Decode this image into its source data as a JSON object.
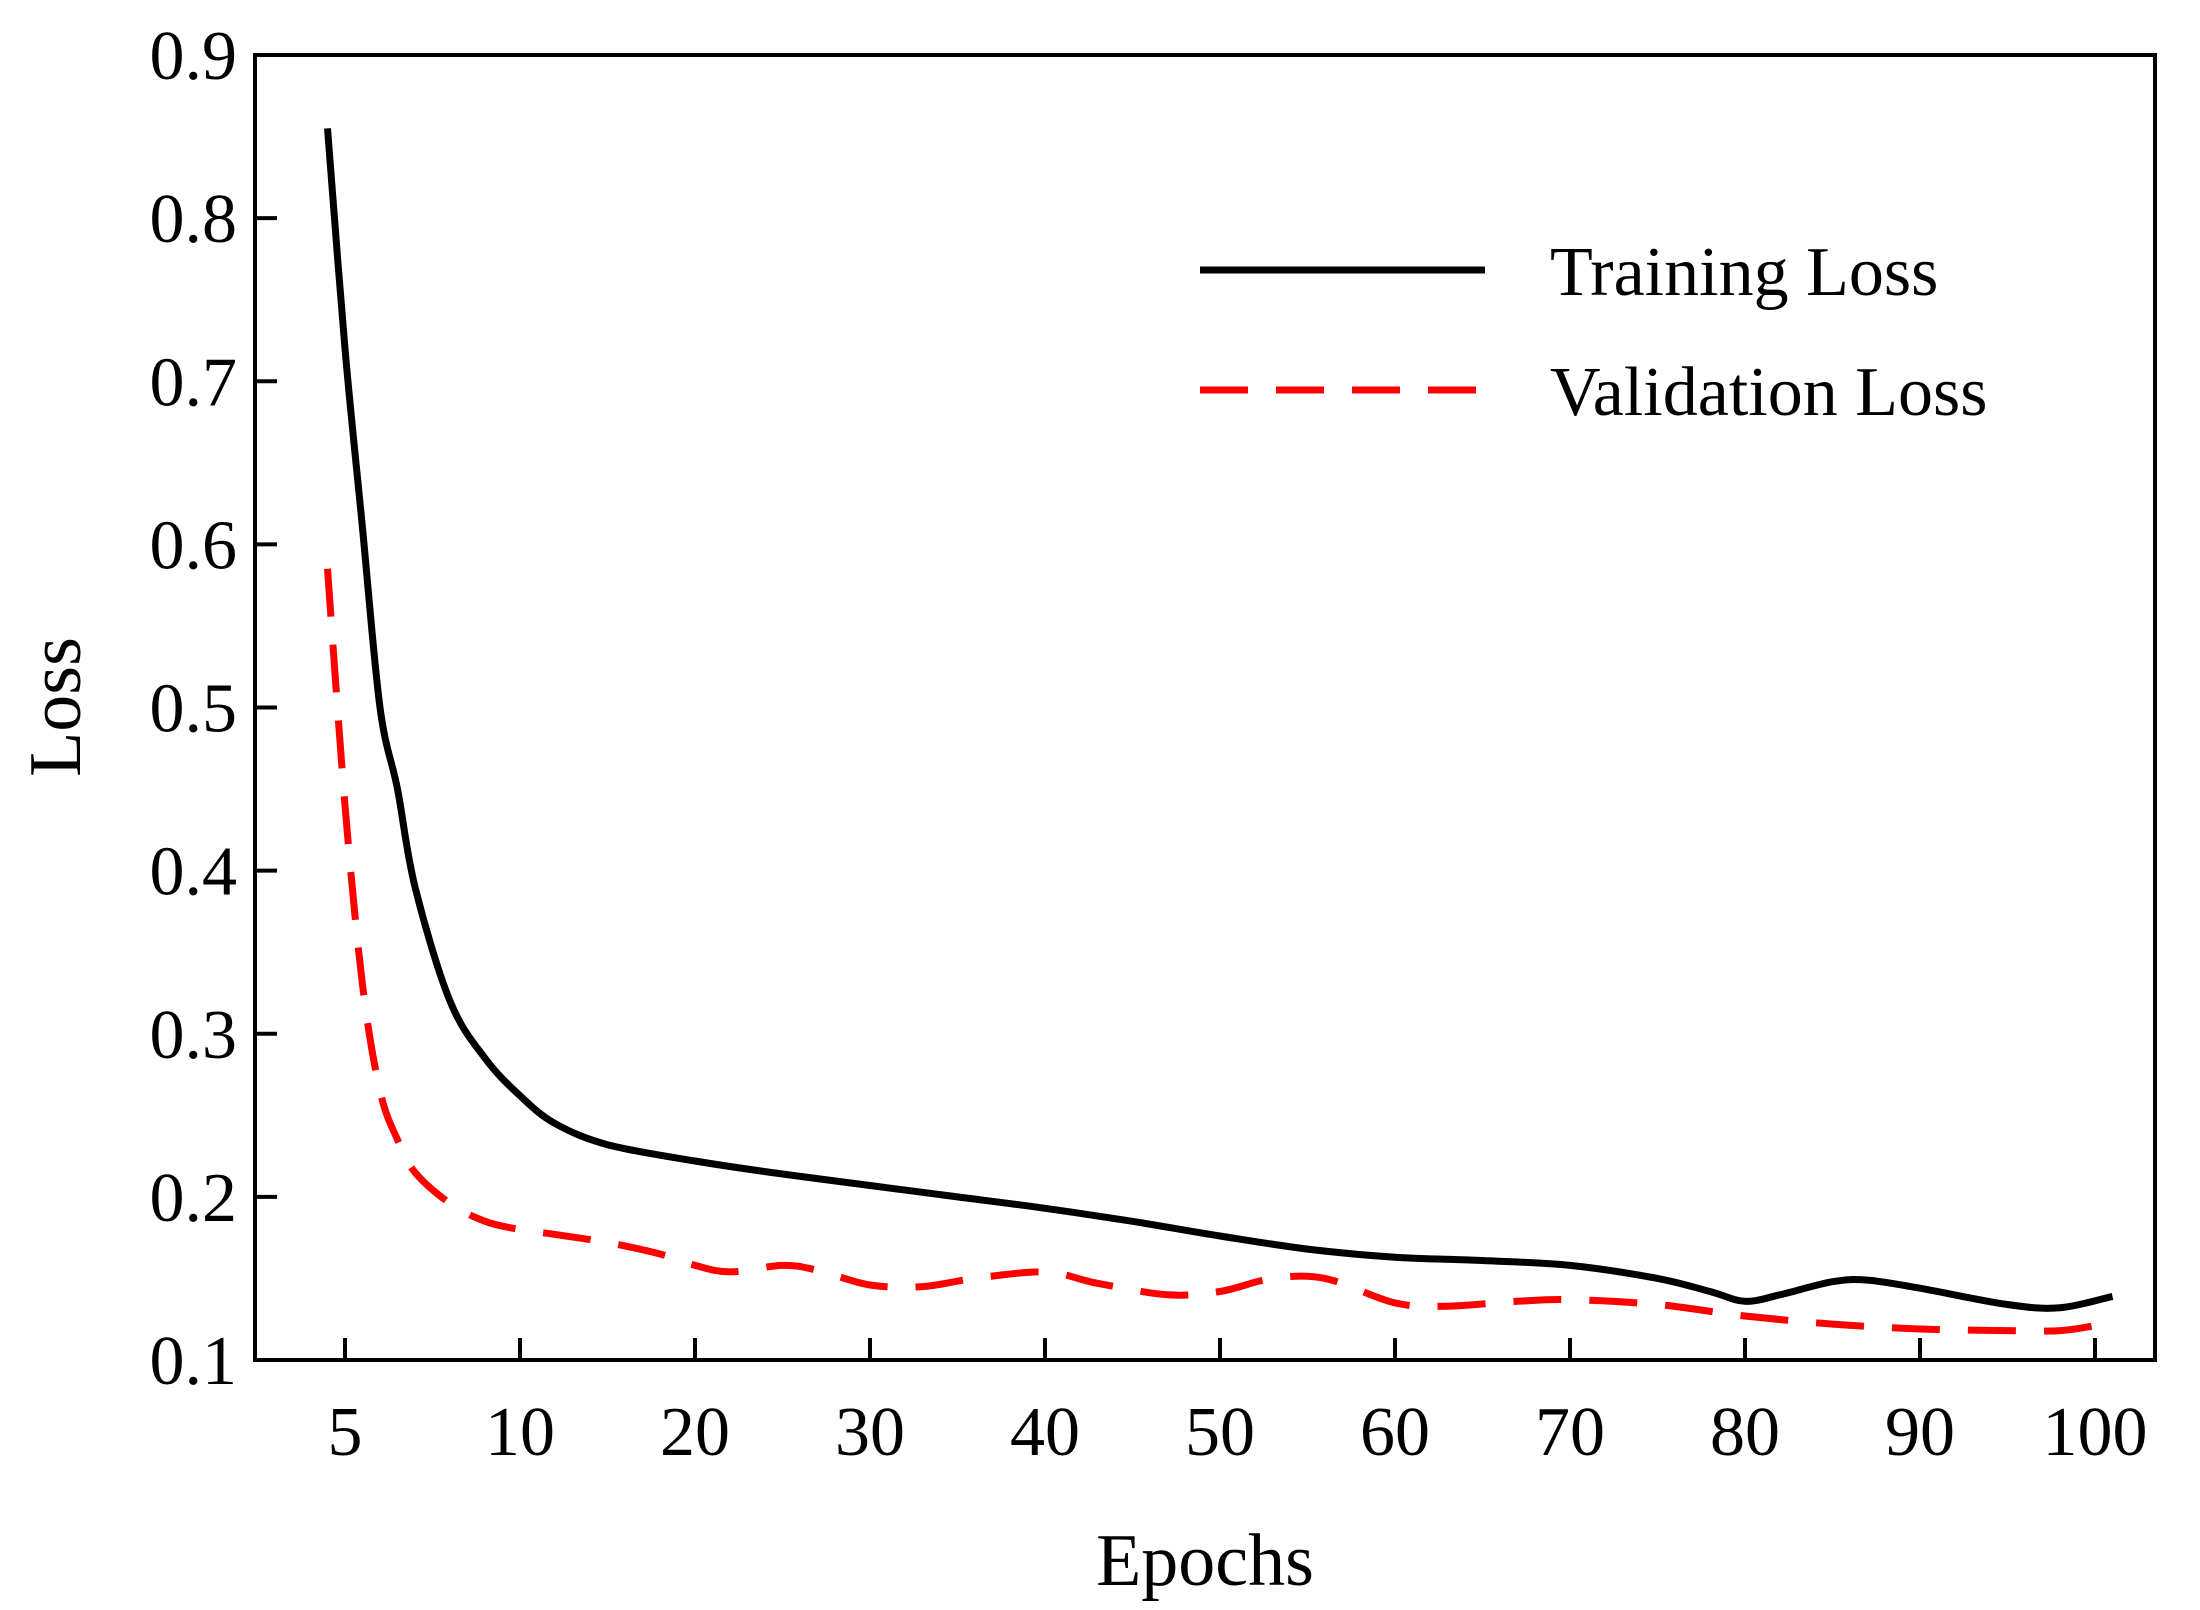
{
  "chart_data": {
    "type": "line",
    "xlabel": "Epochs",
    "ylabel": "Loss",
    "ylim": [
      0.1,
      0.9
    ],
    "x_tick_labels": [
      "5",
      "10",
      "20",
      "30",
      "40",
      "50",
      "60",
      "70",
      "80",
      "90",
      "100"
    ],
    "y_ticks": [
      0.1,
      0.2,
      0.3,
      0.4,
      0.5,
      0.6,
      0.7,
      0.8,
      0.9
    ],
    "y_tick_labels": [
      "0.1",
      "0.2",
      "0.3",
      "0.4",
      "0.5",
      "0.6",
      "0.7",
      "0.8",
      "0.9"
    ],
    "grid": false,
    "legend_position": "top-right",
    "series": [
      {
        "name": "Training Loss",
        "color": "#000000",
        "style": "solid",
        "x": [
          4.5,
          5,
          5.5,
          6,
          6.5,
          7,
          8,
          9,
          10,
          12,
          15,
          20,
          25,
          30,
          35,
          40,
          45,
          50,
          55,
          60,
          65,
          70,
          75,
          78,
          80,
          82,
          85,
          87,
          90,
          95,
          98,
          101
        ],
        "y": [
          0.855,
          0.72,
          0.61,
          0.5,
          0.45,
          0.39,
          0.32,
          0.285,
          0.262,
          0.245,
          0.232,
          0.222,
          0.214,
          0.207,
          0.2,
          0.193,
          0.185,
          0.176,
          0.168,
          0.163,
          0.161,
          0.158,
          0.15,
          0.142,
          0.136,
          0.14,
          0.148,
          0.149,
          0.144,
          0.134,
          0.132,
          0.139
        ]
      },
      {
        "name": "Validation Loss",
        "color": "#ff0000",
        "style": "dashed",
        "x": [
          4.5,
          5,
          5.5,
          6,
          6.5,
          7,
          8,
          9,
          10,
          12,
          15,
          18,
          20,
          22,
          25,
          27,
          30,
          33,
          36,
          40,
          43,
          47,
          50,
          53,
          56,
          60,
          63,
          67,
          70,
          75,
          80,
          85,
          90,
          95,
          98,
          100
        ],
        "y": [
          0.585,
          0.44,
          0.33,
          0.265,
          0.235,
          0.215,
          0.196,
          0.185,
          0.18,
          0.177,
          0.172,
          0.165,
          0.158,
          0.154,
          0.158,
          0.155,
          0.146,
          0.145,
          0.15,
          0.154,
          0.147,
          0.14,
          0.142,
          0.15,
          0.15,
          0.135,
          0.133,
          0.136,
          0.137,
          0.134,
          0.127,
          0.122,
          0.119,
          0.118,
          0.118,
          0.121
        ]
      }
    ]
  }
}
